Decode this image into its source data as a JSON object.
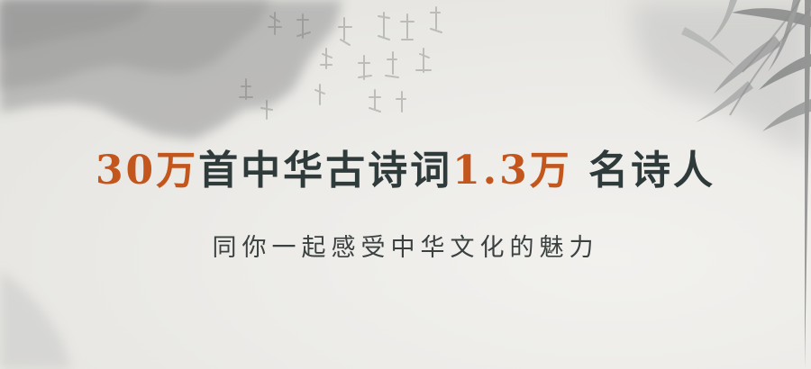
{
  "headline": {
    "poems_count": "30万",
    "poems_label": "首中华古诗词",
    "poets_count": "1.3万",
    "poets_label": "名诗人"
  },
  "subline": "同你一起感受中华文化的魅力",
  "colors": {
    "accent": "#c2561d",
    "headline_text": "#2f3a3a",
    "subline_text": "#3b4141",
    "paper": "#ecebe8"
  }
}
